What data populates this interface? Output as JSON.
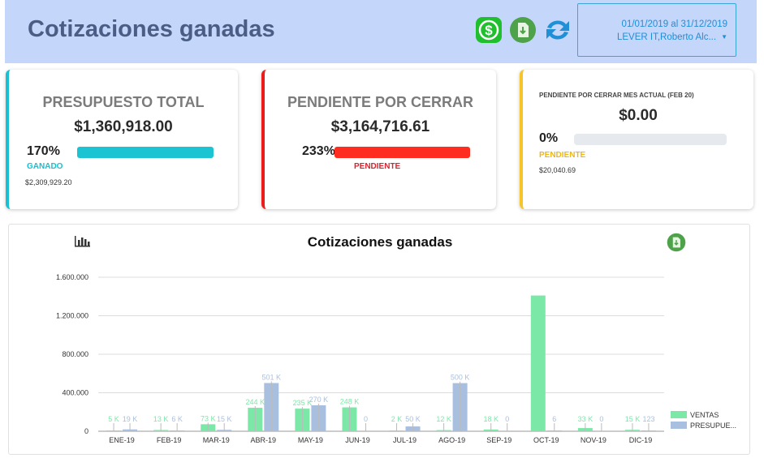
{
  "header": {
    "title": "Cotizaciones ganadas",
    "date_range": "01/01/2019 al 31/12/2019",
    "filter": "LEVER IT,Roberto Alc..."
  },
  "icons": [
    "dollar-icon",
    "download-file-icon",
    "refresh-icon",
    "bar-chart-icon"
  ],
  "cards": [
    {
      "title": "PRESUPUESTO TOTAL",
      "amount": "$1,360,918.00",
      "percent": "170%",
      "progress": 1.0,
      "status": "GANADO",
      "sub": "$2,309,929.20",
      "color": "#17c1d1"
    },
    {
      "title": "PENDIENTE POR CERRAR",
      "amount": "$3,164,716.61",
      "percent": "233%",
      "progress": 1.0,
      "status": "PENDIENTE",
      "color": "#ee1b1b"
    },
    {
      "title": "PENDIENTE POR CERRAR MES ACTUAL (FEB 20)",
      "amount": "$0.00",
      "percent": "0%",
      "progress": 0,
      "status": "PENDIENTE",
      "sub": "$20,040.69",
      "color": "#f7c42a"
    }
  ],
  "chart_data": {
    "type": "bar",
    "title": "Cotizaciones ganadas",
    "categories": [
      "ENE-19",
      "FEB-19",
      "MAR-19",
      "ABR-19",
      "MAY-19",
      "JUN-19",
      "JUL-19",
      "AGO-19",
      "SEP-19",
      "OCT-19",
      "NOV-19",
      "DIC-19"
    ],
    "y_ticks": [
      "0",
      "400.000",
      "800.000",
      "1.200.000",
      "1.600.000"
    ],
    "ylim": [
      0,
      1600000
    ],
    "series": [
      {
        "name": "VENTAS",
        "color": "#7ce8a8",
        "values": [
          5000,
          13000,
          73000,
          244000,
          235000,
          248000,
          2000,
          12000,
          18000,
          1410000,
          33000,
          15000
        ],
        "labels": [
          "5 K",
          "13 K",
          "73 K",
          "244 K",
          "235 K",
          "248 K",
          "2 K",
          "12 K",
          "18 K",
          "",
          "33 K",
          "15 K"
        ]
      },
      {
        "name": "PRESUPUE...",
        "color": "#a9bfdf",
        "values": [
          19000,
          6000,
          15000,
          501000,
          270000,
          0,
          50000,
          500000,
          0,
          6,
          0,
          123
        ],
        "labels": [
          "19 K",
          "6 K",
          "15 K",
          "501 K",
          "270 K",
          "0",
          "50 K",
          "500 K",
          "0",
          "6",
          "0",
          "123"
        ]
      }
    ]
  }
}
